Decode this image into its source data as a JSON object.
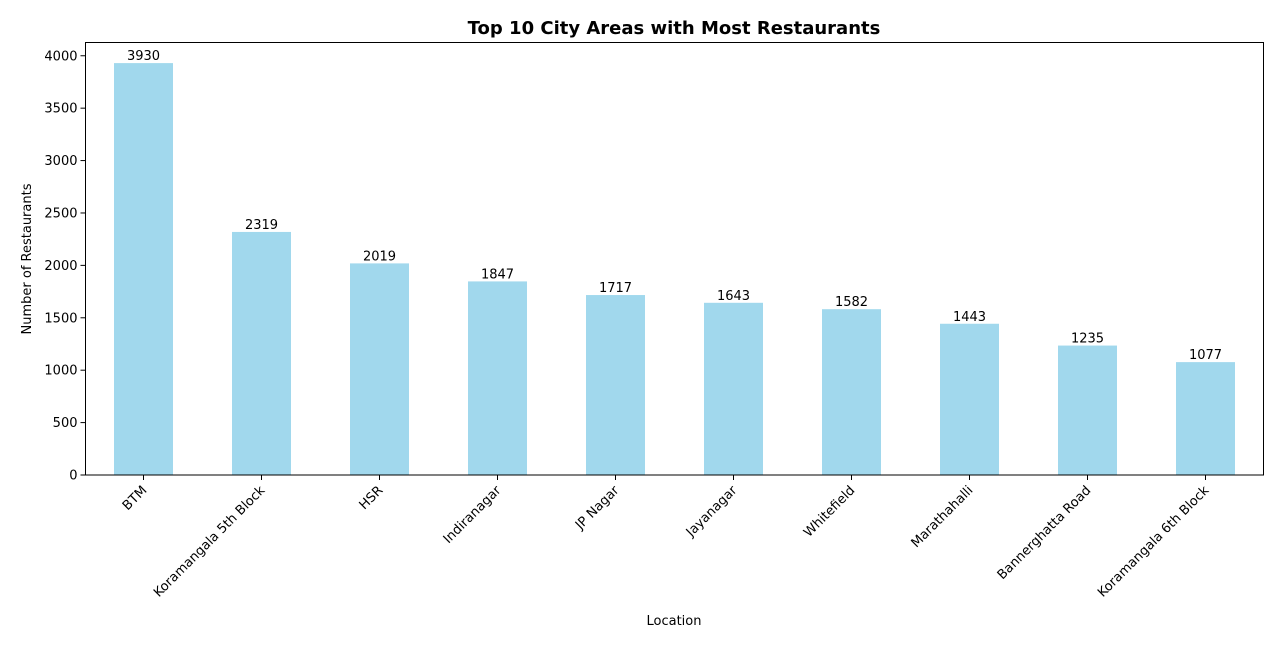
{
  "chart_data": {
    "type": "bar",
    "title": "Top 10 City Areas with Most Restaurants",
    "xlabel": "Location",
    "ylabel": "Number of Restaurants",
    "categories": [
      "BTM",
      "Koramangala 5th Block",
      "HSR",
      "Indiranagar",
      "JP Nagar",
      "Jayanagar",
      "Whitefield",
      "Marathahalli",
      "Bannerghatta Road",
      "Koramangala 6th Block"
    ],
    "values": [
      3930,
      2319,
      2019,
      1847,
      1717,
      1643,
      1582,
      1443,
      1235,
      1077
    ],
    "ylim": [
      0,
      4126.5
    ],
    "yticks": [
      0,
      500,
      1000,
      1500,
      2000,
      2500,
      3000,
      3500,
      4000
    ],
    "grid": false,
    "legend": "none",
    "bar_color": "#a1d8ed",
    "data_labels": true
  }
}
